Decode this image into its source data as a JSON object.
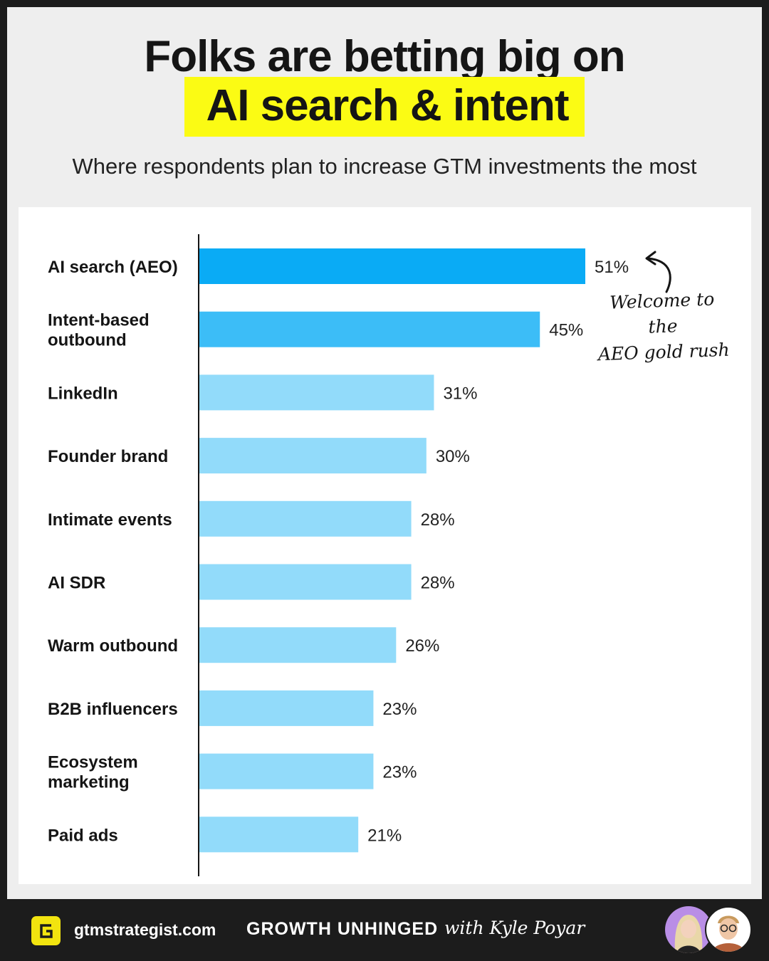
{
  "header": {
    "title_line1": "Folks are betting big on",
    "title_line2": "AI search & intent",
    "subtitle": "Where respondents plan to increase GTM investments the most",
    "highlight_color": "#fbfb14"
  },
  "chart_data": {
    "type": "bar",
    "orientation": "horizontal",
    "categories": [
      "AI search (AEO)",
      "Intent-based outbound",
      "LinkedIn",
      "Founder brand",
      "Intimate events",
      "AI SDR",
      "Warm outbound",
      "B2B influencers",
      "Ecosystem marketing",
      "Paid ads"
    ],
    "category_lines": [
      [
        "AI search (AEO)"
      ],
      [
        "Intent-based",
        "outbound"
      ],
      [
        "LinkedIn"
      ],
      [
        "Founder brand"
      ],
      [
        "Intimate events"
      ],
      [
        "AI SDR"
      ],
      [
        "Warm outbound"
      ],
      [
        "B2B influencers"
      ],
      [
        "Ecosystem",
        "marketing"
      ],
      [
        "Paid ads"
      ]
    ],
    "values": [
      51,
      45,
      31,
      30,
      28,
      28,
      26,
      23,
      23,
      21
    ],
    "labels": [
      "51%",
      "45%",
      "31%",
      "30%",
      "28%",
      "28%",
      "26%",
      "23%",
      "23%",
      "21%"
    ],
    "xlim": [
      0,
      100
    ],
    "grid": false,
    "bar_colors": [
      "#0aabf5",
      "#3cbdf7",
      "#92dbfa",
      "#92dbfa",
      "#92dbfa",
      "#92dbfa",
      "#92dbfa",
      "#92dbfa",
      "#92dbfa",
      "#92dbfa"
    ],
    "annotation": {
      "lines": [
        "Welcome to the",
        "AEO gold rush"
      ],
      "target": "AI search (AEO)"
    }
  },
  "footer": {
    "logo_letter": "G",
    "logo_color": "#f2e40f",
    "site": "gtmstrategist.com",
    "brand": "GROWTH UNHINGED",
    "byline": "with Kyle Poyar",
    "avatars": [
      "avatar-woman",
      "avatar-man-glasses"
    ]
  }
}
